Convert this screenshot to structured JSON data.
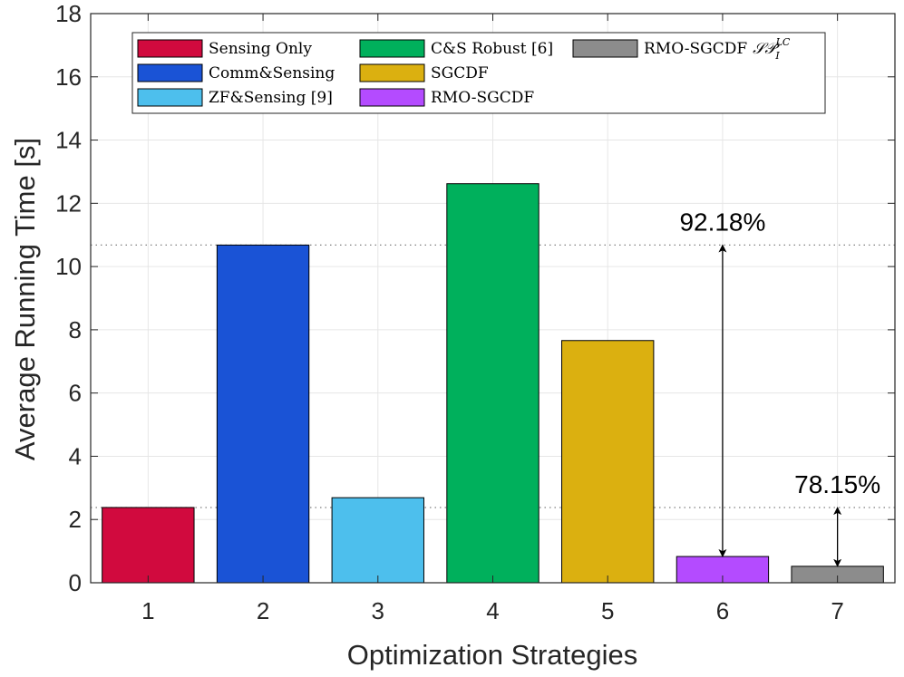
{
  "chart_data": {
    "type": "bar",
    "xlabel": "Optimization Strategies",
    "ylabel": "Average Running Time [s]",
    "categories": [
      "1",
      "2",
      "3",
      "4",
      "5",
      "6",
      "7"
    ],
    "values": [
      2.38,
      10.68,
      2.69,
      12.62,
      7.66,
      0.83,
      0.52
    ],
    "colors": [
      "#d10a3e",
      "#1a53d6",
      "#4dbfed",
      "#00b05c",
      "#dbb010",
      "#b44bff",
      "#8c8c8c"
    ],
    "legend": [
      "Sensing Only",
      "Comm&Sensing",
      "ZF&Sensing [9]",
      "C&S Robust [6]",
      "SGCDF",
      "RMO-SGCDF",
      "RMO-SGCDF"
    ],
    "legend_math": {
      "base": "𝒮𝒫",
      "sub": "I",
      "sup": "LC"
    },
    "xlim": [
      0.5,
      7.5
    ],
    "ylim": [
      0,
      18
    ],
    "yticks": [
      0,
      2,
      4,
      6,
      8,
      10,
      12,
      14,
      16,
      18
    ],
    "grid": true,
    "legend_position": "top",
    "reference_lines": [
      10.68,
      2.38
    ],
    "annotations": [
      {
        "text": "92.18%",
        "x": 6,
        "y_from": 0.83,
        "y_to": 10.68
      },
      {
        "text": "78.15%",
        "x": 7,
        "y_from": 0.52,
        "y_to": 2.38
      }
    ]
  }
}
